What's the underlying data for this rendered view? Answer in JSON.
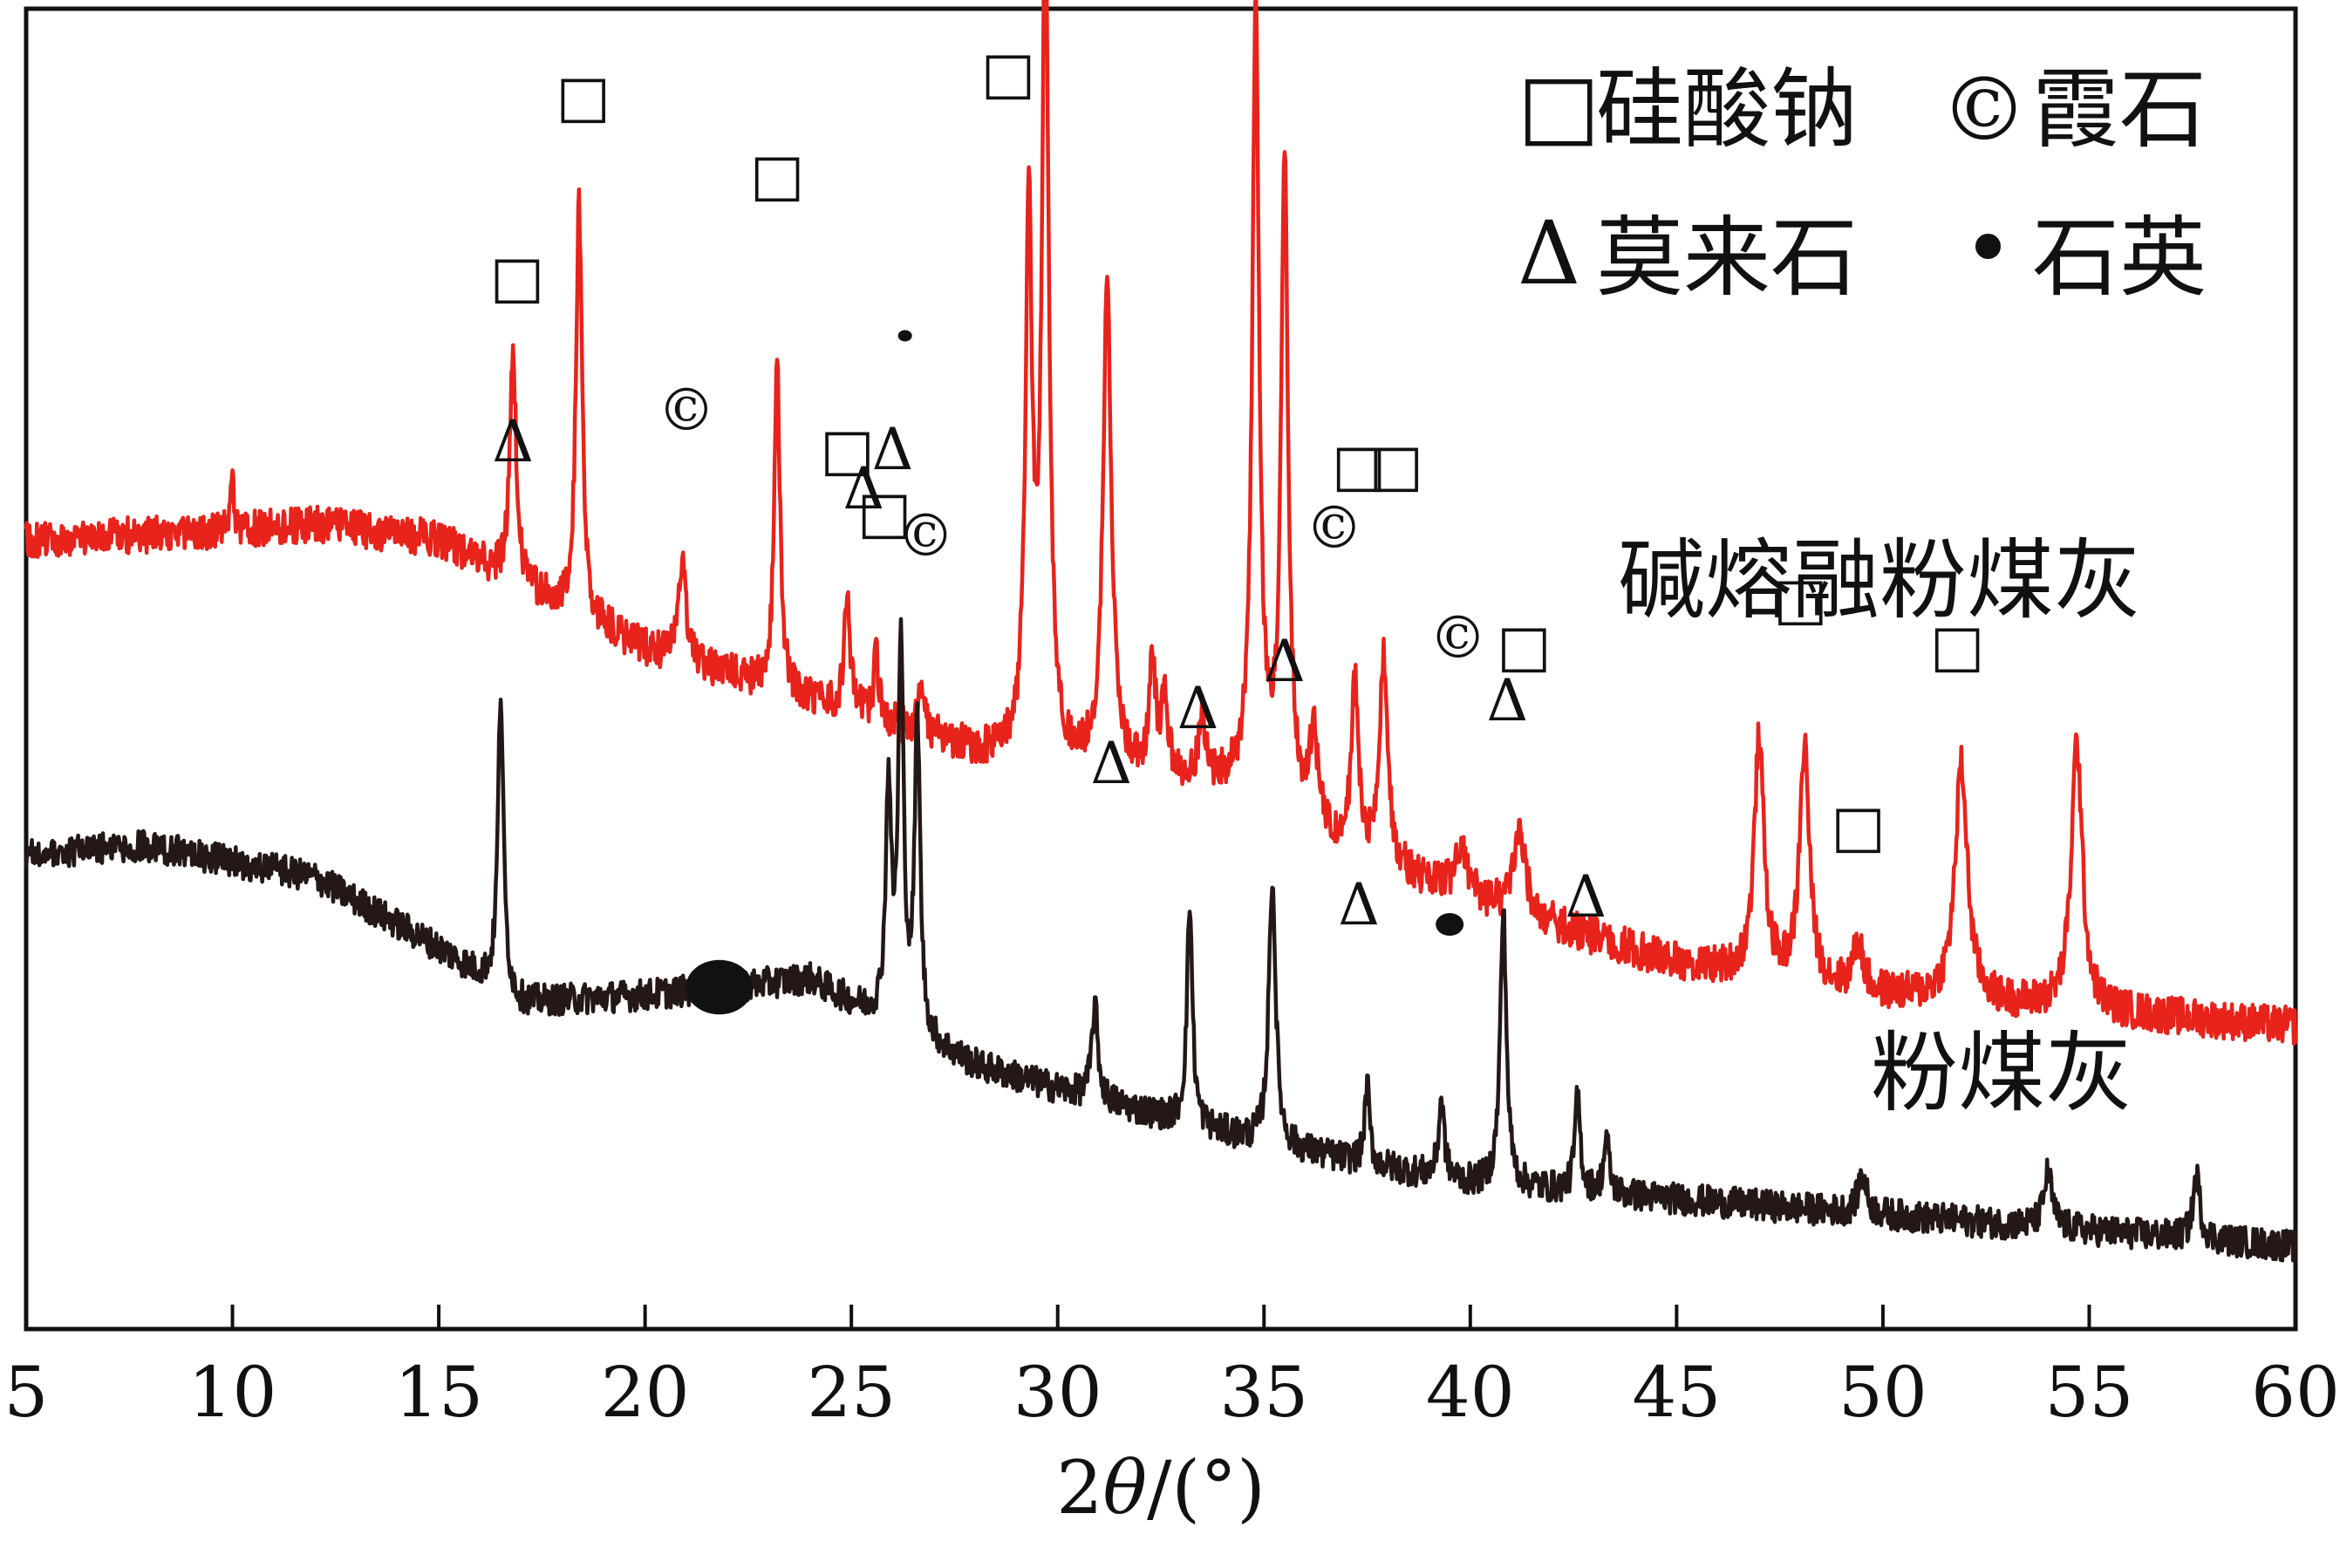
{
  "chart_data": {
    "type": "line",
    "xlabel_prefix": "2",
    "xlabel_theta": "θ",
    "xlabel_suffix": "/(°)",
    "xlim": [
      5,
      60
    ],
    "xticks": [
      5,
      10,
      15,
      20,
      25,
      30,
      35,
      40,
      45,
      50,
      55,
      60
    ],
    "grid": false,
    "legend": {
      "placement": "top-right",
      "entries": [
        {
          "symbol": "□",
          "label": "硅酸钠"
        },
        {
          "symbol": "©",
          "label": "霞石"
        },
        {
          "symbol": "Δ",
          "label": "莫来石"
        },
        {
          "symbol": "•",
          "label": "石英"
        }
      ]
    },
    "series": [
      {
        "name": "碱熔融粉煤灰",
        "color": "#e8231b",
        "baseline": [
          [
            5,
            0.84
          ],
          [
            10,
            0.85
          ],
          [
            12,
            0.86
          ],
          [
            15,
            0.84
          ],
          [
            17,
            0.78
          ],
          [
            20,
            0.7
          ],
          [
            25,
            0.62
          ],
          [
            28,
            0.57
          ],
          [
            30,
            0.55
          ],
          [
            35,
            0.52
          ],
          [
            37,
            0.44
          ],
          [
            40,
            0.38
          ],
          [
            45,
            0.3
          ],
          [
            50,
            0.26
          ],
          [
            55,
            0.24
          ],
          [
            60,
            0.22
          ]
        ],
        "peaks": [
          {
            "x": 10.0,
            "h": 0.07,
            "w": 0.05
          },
          {
            "x": 16.8,
            "h": 0.3,
            "w": 0.09
          },
          {
            "x": 18.4,
            "h": 0.52,
            "w": 0.09
          },
          {
            "x": 20.9,
            "h": 0.13,
            "w": 0.1
          },
          {
            "x": 23.2,
            "h": 0.43,
            "w": 0.08
          },
          {
            "x": 24.9,
            "h": 0.15,
            "w": 0.08
          },
          {
            "x": 25.6,
            "h": 0.08,
            "w": 0.07
          },
          {
            "x": 26.7,
            "h": 0.05,
            "w": 0.1
          },
          {
            "x": 29.3,
            "h": 0.68,
            "w": 0.1
          },
          {
            "x": 29.7,
            "h": 1.05,
            "w": 0.1
          },
          {
            "x": 31.2,
            "h": 0.62,
            "w": 0.12
          },
          {
            "x": 32.3,
            "h": 0.14,
            "w": 0.1
          },
          {
            "x": 32.6,
            "h": 0.1,
            "w": 0.08
          },
          {
            "x": 33.5,
            "h": 0.08,
            "w": 0.1
          },
          {
            "x": 34.8,
            "h": 0.99,
            "w": 0.1
          },
          {
            "x": 35.5,
            "h": 0.82,
            "w": 0.1
          },
          {
            "x": 36.2,
            "h": 0.11,
            "w": 0.12
          },
          {
            "x": 37.2,
            "h": 0.22,
            "w": 0.1
          },
          {
            "x": 37.9,
            "h": 0.26,
            "w": 0.12
          },
          {
            "x": 39.8,
            "h": 0.06,
            "w": 0.18
          },
          {
            "x": 41.2,
            "h": 0.1,
            "w": 0.18
          },
          {
            "x": 47.0,
            "h": 0.3,
            "w": 0.14
          },
          {
            "x": 48.1,
            "h": 0.3,
            "w": 0.14
          },
          {
            "x": 49.4,
            "h": 0.06,
            "w": 0.14
          },
          {
            "x": 51.9,
            "h": 0.3,
            "w": 0.18
          },
          {
            "x": 54.7,
            "h": 0.34,
            "w": 0.16
          }
        ],
        "noise": 0.024,
        "label": "碱熔融粉煤灰",
        "markers": [
          {
            "x": 16.9,
            "symbol": "□",
            "y": 1.15
          },
          {
            "x": 18.5,
            "symbol": "□",
            "y": 1.38
          },
          {
            "x": 21.0,
            "symbol": "©",
            "y": 0.98
          },
          {
            "x": 23.2,
            "symbol": "□",
            "y": 1.28
          },
          {
            "x": 24.9,
            "symbol": "□",
            "y": 0.93
          },
          {
            "x": 25.8,
            "symbol": "□",
            "y": 0.85
          },
          {
            "x": 26.8,
            "symbol": "©",
            "y": 0.82
          },
          {
            "x": 28.8,
            "symbol": "□",
            "y": 1.41
          },
          {
            "x": 29.9,
            "symbol": "©",
            "y": 1.73
          },
          {
            "x": 35.0,
            "symbol": "©",
            "y": 1.63
          },
          {
            "x": 35.7,
            "symbol": "□",
            "y": 1.55
          },
          {
            "x": 36.7,
            "symbol": "©",
            "y": 0.83
          },
          {
            "x": 37.3,
            "symbol": "□",
            "y": 0.91
          },
          {
            "x": 38.2,
            "symbol": "□",
            "y": 0.91
          },
          {
            "x": 39.7,
            "symbol": "©",
            "y": 0.69
          },
          {
            "x": 41.3,
            "symbol": "□",
            "y": 0.68
          },
          {
            "x": 48.0,
            "symbol": "□",
            "y": 0.74
          },
          {
            "x": 49.4,
            "symbol": "□",
            "y": 0.45
          },
          {
            "x": 51.8,
            "symbol": "□",
            "y": 0.68
          }
        ]
      },
      {
        "name": "粉煤灰",
        "color": "#231815",
        "baseline": [
          [
            5,
            0.44
          ],
          [
            8,
            0.45
          ],
          [
            12,
            0.41
          ],
          [
            15,
            0.32
          ],
          [
            17,
            0.25
          ],
          [
            20,
            0.26
          ],
          [
            24,
            0.28
          ],
          [
            26,
            0.22
          ],
          [
            28,
            0.17
          ],
          [
            30,
            0.14
          ],
          [
            35,
            0.07
          ],
          [
            40,
            0.02
          ],
          [
            45,
            0.0
          ],
          [
            50,
            -0.02
          ],
          [
            55,
            -0.04
          ],
          [
            60,
            -0.06
          ]
        ],
        "peaks": [
          {
            "x": 16.5,
            "h": 0.38,
            "w": 0.08
          },
          {
            "x": 25.9,
            "h": 0.3,
            "w": 0.08
          },
          {
            "x": 26.2,
            "h": 0.48,
            "w": 0.08
          },
          {
            "x": 26.6,
            "h": 0.4,
            "w": 0.08
          },
          {
            "x": 30.9,
            "h": 0.12,
            "w": 0.09
          },
          {
            "x": 33.2,
            "h": 0.28,
            "w": 0.08
          },
          {
            "x": 35.2,
            "h": 0.34,
            "w": 0.1
          },
          {
            "x": 37.5,
            "h": 0.1,
            "w": 0.07
          },
          {
            "x": 39.3,
            "h": 0.1,
            "w": 0.08
          },
          {
            "x": 40.8,
            "h": 0.35,
            "w": 0.09
          },
          {
            "x": 42.6,
            "h": 0.12,
            "w": 0.08
          },
          {
            "x": 43.3,
            "h": 0.07,
            "w": 0.08
          },
          {
            "x": 49.5,
            "h": 0.05,
            "w": 0.12
          },
          {
            "x": 54.0,
            "h": 0.07,
            "w": 0.12
          },
          {
            "x": 57.6,
            "h": 0.08,
            "w": 0.1
          }
        ],
        "noise": 0.02,
        "label": "粉煤灰",
        "markers": [
          {
            "x": 16.8,
            "symbol": "Δ",
            "y": 0.94
          },
          {
            "x": 25.3,
            "symbol": "Δ",
            "y": 0.88
          },
          {
            "x": 26.0,
            "symbol": "Δ",
            "y": 0.93
          },
          {
            "x": 31.3,
            "symbol": "Δ",
            "y": 0.53
          },
          {
            "x": 33.4,
            "symbol": "Δ",
            "y": 0.6
          },
          {
            "x": 35.5,
            "symbol": "Δ",
            "y": 0.66
          },
          {
            "x": 37.3,
            "symbol": "Δ",
            "y": 0.35
          },
          {
            "x": 40.9,
            "symbol": "Δ",
            "y": 0.61
          },
          {
            "x": 42.8,
            "symbol": "Δ",
            "y": 0.36
          }
        ],
        "dot_markers": [
          {
            "x": 26.3,
            "y": 1.1,
            "r": 0.5
          },
          {
            "x": 39.5,
            "y": 0.35,
            "r": 1.0
          },
          {
            "x": 21.8,
            "y": 0.27,
            "r": 2.4
          }
        ]
      }
    ]
  }
}
